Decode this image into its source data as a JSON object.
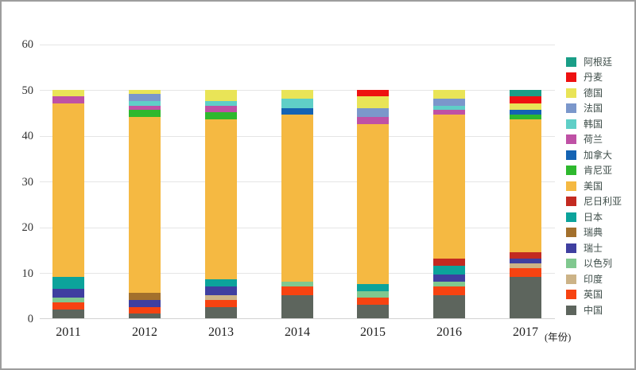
{
  "chart_data": {
    "type": "bar",
    "stacked": true,
    "title": "",
    "xlabel": "",
    "ylabel": "",
    "xlabel_suffix": "(年份)",
    "categories": [
      "2011",
      "2012",
      "2013",
      "2014",
      "2015",
      "2016",
      "2017"
    ],
    "ylim": [
      0,
      60
    ],
    "yticks": [
      0,
      10,
      20,
      30,
      40,
      50,
      60
    ],
    "grid": "horizontal",
    "legend_position": "right",
    "series": [
      {
        "name": "阿根廷",
        "color": "#1a9e87",
        "values": [
          0,
          0,
          0,
          0,
          0,
          0,
          1.5
        ]
      },
      {
        "name": "丹麦",
        "color": "#ee1111",
        "values": [
          0,
          0,
          0,
          0,
          1.5,
          0,
          1.5
        ]
      },
      {
        "name": "德国",
        "color": "#e9e457",
        "values": [
          1.5,
          1,
          2.5,
          2,
          2.5,
          2,
          1.5
        ]
      },
      {
        "name": "法国",
        "color": "#7b97cb",
        "values": [
          0,
          1.5,
          0,
          0,
          2,
          1.5,
          0
        ]
      },
      {
        "name": "韩国",
        "color": "#5fcfc7",
        "values": [
          0,
          1,
          1,
          2,
          0,
          1,
          0
        ]
      },
      {
        "name": "荷兰",
        "color": "#bf51a5",
        "values": [
          1.5,
          1,
          1.5,
          0,
          1.5,
          1,
          0
        ]
      },
      {
        "name": "加拿大",
        "color": "#1463b3",
        "values": [
          0,
          0,
          0,
          1.5,
          0,
          0,
          1
        ]
      },
      {
        "name": "肯尼亚",
        "color": "#2eb82e",
        "values": [
          0,
          1.5,
          1.5,
          0,
          0,
          0,
          1
        ]
      },
      {
        "name": "美国",
        "color": "#f5b942",
        "values": [
          38,
          38.5,
          35,
          36.5,
          35,
          31.5,
          29
        ]
      },
      {
        "name": "尼日利亚",
        "color": "#c32a21",
        "values": [
          0,
          0,
          0,
          0,
          0,
          1.5,
          1.5
        ]
      },
      {
        "name": "日本",
        "color": "#0ca39b",
        "values": [
          2.5,
          0,
          1.5,
          0,
          1.5,
          2,
          0
        ]
      },
      {
        "name": "瑞典",
        "color": "#a3702c",
        "values": [
          0,
          1.5,
          0,
          0,
          0,
          0,
          0
        ]
      },
      {
        "name": "瑞士",
        "color": "#3f3fa0",
        "values": [
          2,
          1.5,
          2,
          0,
          0,
          1.5,
          1
        ]
      },
      {
        "name": "以色列",
        "color": "#80c88f",
        "values": [
          1,
          0,
          0,
          1,
          1.5,
          1,
          0
        ]
      },
      {
        "name": "印度",
        "color": "#ccb387",
        "values": [
          0,
          0,
          1,
          0,
          0,
          0,
          1
        ]
      },
      {
        "name": "英国",
        "color": "#f74311",
        "values": [
          1.5,
          1.5,
          1.5,
          2,
          1.5,
          2,
          2
        ]
      },
      {
        "name": "中国",
        "color": "#5d655d",
        "values": [
          2,
          1,
          2.5,
          5,
          3,
          5,
          9
        ]
      }
    ]
  }
}
